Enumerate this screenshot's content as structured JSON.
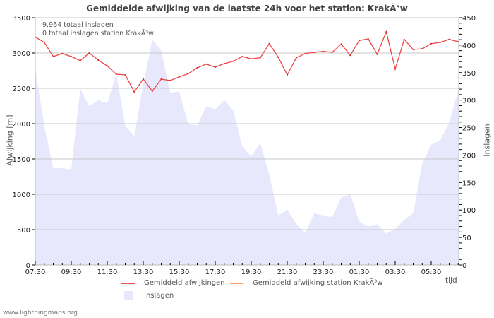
{
  "title": "Gemiddelde afwijking van de laatste 24h voor het station: KrakÃ³w",
  "info_lines": [
    "9.964 totaal inslagen",
    "0 totaal inslagen station KrakÃ³w"
  ],
  "footer": "www.lightningmaps.org",
  "legend": {
    "line1": "Gemiddeld afwijkingen",
    "line2": "Gemiddeld afwijking station KrakÃ³w",
    "area": "Inslagen"
  },
  "colors": {
    "deviation_line": "#ee4444",
    "station_line": "#ffa060",
    "strikes_area": "#e8e8fc",
    "grid": "#c8c8c8",
    "axis": "#bbbbbb"
  },
  "chart_data": {
    "type": "line+area",
    "title": "Gemiddelde afwijking van de laatste 24h voor het station: KrakÃ³w",
    "xlabel": "tijd",
    "ylabel": "Afwijking  [m]",
    "ylabel_right": "Inslagen",
    "ylim": [
      0,
      3500
    ],
    "ylim_right": [
      0,
      450
    ],
    "yticks": [
      0,
      500,
      1000,
      1500,
      2000,
      2500,
      3000,
      3500
    ],
    "yticks_right": [
      0,
      50,
      100,
      150,
      200,
      250,
      300,
      350,
      400,
      450
    ],
    "xtick_labels": [
      "07:30",
      "09:30",
      "11:30",
      "13:30",
      "15:30",
      "17:30",
      "19:30",
      "21:30",
      "23:30",
      "01:30",
      "03:30",
      "05:30"
    ],
    "x_interval_minutes": 30,
    "grid": true,
    "series": [
      {
        "name": "Gemiddeld afwijkingen",
        "axis": "left",
        "type": "line",
        "values": [
          3227,
          3150,
          2950,
          2993,
          2950,
          2893,
          3000,
          2900,
          2817,
          2700,
          2690,
          2450,
          2633,
          2460,
          2630,
          2610,
          2663,
          2707,
          2790,
          2843,
          2800,
          2850,
          2883,
          2950,
          2917,
          2933,
          3133,
          2940,
          2690,
          2933,
          2993,
          3010,
          3023,
          3010,
          3127,
          2967,
          3177,
          3200,
          2983,
          3300,
          2773,
          3193,
          3050,
          3060,
          3133,
          3150,
          3193,
          3160
        ]
      },
      {
        "name": "Gemiddeld afwijking station KrakÃ³w",
        "axis": "left",
        "type": "line",
        "values": []
      },
      {
        "name": "Inslagen",
        "axis": "right",
        "type": "area",
        "values": [
          356,
          253,
          176,
          176,
          174,
          320,
          289,
          300,
          294,
          348,
          253,
          234,
          328,
          410,
          390,
          313,
          316,
          256,
          254,
          289,
          283,
          300,
          281,
          216,
          197,
          222,
          165,
          90,
          101,
          75,
          58,
          94,
          90,
          87,
          123,
          129,
          79,
          70,
          74,
          57,
          66,
          82,
          94,
          184,
          219,
          227,
          259,
          318
        ]
      }
    ]
  }
}
